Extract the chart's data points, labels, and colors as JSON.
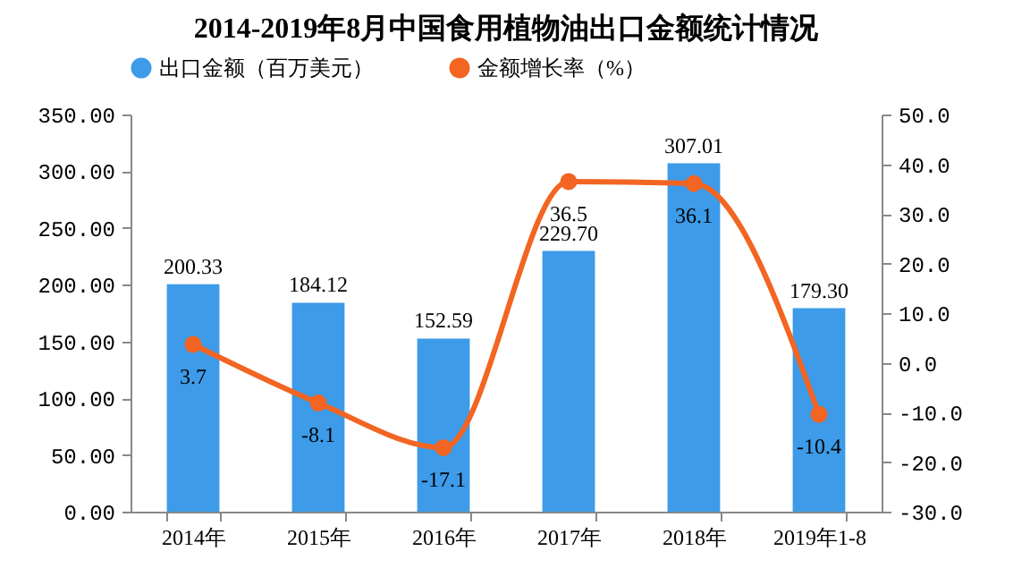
{
  "chart_data": {
    "type": "bar",
    "title": "2014-2019年8月中国食用植物油出口金额统计情况",
    "categories": [
      "2014年",
      "2015年",
      "2016年",
      "2017年",
      "2018年",
      "2019年1-8"
    ],
    "series": [
      {
        "name": "出口金额（百万美元）",
        "color": "#3d9be9",
        "values": [
          200.33,
          184.12,
          152.59,
          229.7,
          307.01,
          179.3
        ],
        "value_labels": [
          "200.33",
          "184.12",
          "152.59",
          "229.70",
          "307.01",
          "179.30"
        ]
      },
      {
        "name": "金额增长率（%）",
        "type": "line",
        "axis": "y2",
        "color": "#f26522",
        "values": [
          3.7,
          -8.1,
          -17.1,
          36.5,
          36.1,
          -10.4
        ],
        "value_labels": [
          "3.7",
          "-8.1",
          "-17.1",
          "36.5",
          "36.1",
          "-10.4"
        ]
      }
    ],
    "ylim": [
      0,
      350
    ],
    "yticks": [
      {
        "value": 0,
        "label": "0.00"
      },
      {
        "value": 50,
        "label": "50.00"
      },
      {
        "value": 100,
        "label": "100.00"
      },
      {
        "value": 150,
        "label": "150.00"
      },
      {
        "value": 200,
        "label": "200.00"
      },
      {
        "value": 250,
        "label": "250.00"
      },
      {
        "value": 300,
        "label": "300.00"
      },
      {
        "value": 350,
        "label": "350.00"
      }
    ],
    "y2lim": [
      -30,
      50
    ],
    "y2ticks": [
      {
        "value": -30,
        "label": "-30.0"
      },
      {
        "value": -20,
        "label": "-20.0"
      },
      {
        "value": -10,
        "label": "-10.0"
      },
      {
        "value": 0,
        "label": "0.0"
      },
      {
        "value": 10,
        "label": "10.0"
      },
      {
        "value": 20,
        "label": "20.0"
      },
      {
        "value": 30,
        "label": "30.0"
      },
      {
        "value": 40,
        "label": "40.0"
      },
      {
        "value": 50,
        "label": "50.0"
      }
    ],
    "legend": "top",
    "marker": "circle",
    "grid": false
  }
}
